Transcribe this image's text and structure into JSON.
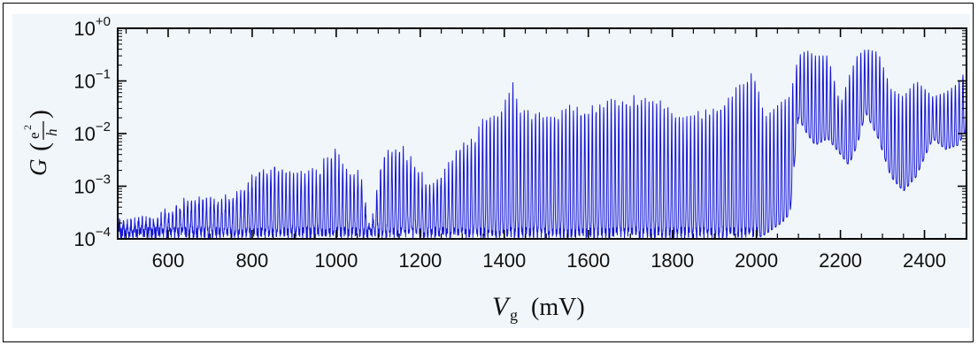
{
  "chart_data": {
    "type": "line",
    "title": "",
    "xlabel": {
      "symbol": "V",
      "subscript": "g",
      "unit": "(mV)"
    },
    "ylabel": {
      "symbol": "G",
      "numerator": "e",
      "exponent": "2",
      "denominator": "h"
    },
    "xlim": [
      480,
      2500
    ],
    "ylim": [
      0.0001,
      1
    ],
    "yscale": "log",
    "x_ticks": [
      600,
      800,
      1000,
      1200,
      1400,
      1600,
      1800,
      2000,
      2200,
      2400
    ],
    "x_tick_labels": [
      "600",
      "800",
      "1000",
      "1200",
      "1400",
      "1600",
      "1800",
      "2000",
      "2200",
      "2400"
    ],
    "y_ticks": [
      {
        "value": 1,
        "base": "10",
        "exp": "+0"
      },
      {
        "value": 0.1,
        "base": "10",
        "exp": "−1"
      },
      {
        "value": 0.01,
        "base": "10",
        "exp": "−2"
      },
      {
        "value": 0.001,
        "base": "10",
        "exp": "−3"
      },
      {
        "value": 0.0001,
        "base": "10",
        "exp": "−4"
      }
    ],
    "grid": false,
    "series": [
      {
        "color": "#1515d8",
        "envelope": {
          "x": [
            480,
            560,
            620,
            660,
            720,
            780,
            820,
            850,
            880,
            920,
            960,
            990,
            1000,
            1020,
            1060,
            1080,
            1110,
            1130,
            1160,
            1190,
            1220,
            1260,
            1290,
            1310,
            1330,
            1360,
            1380,
            1420,
            1440,
            1480,
            1520,
            1560,
            1600,
            1640,
            1700,
            1740,
            1780,
            1820,
            1860,
            1900,
            1940,
            1980,
            2000,
            2020,
            2060,
            2080,
            2100,
            2120,
            2140,
            2170,
            2200,
            2220,
            2240,
            2260,
            2290,
            2320,
            2350,
            2380,
            2420,
            2450,
            2480,
            2500
          ],
          "peak": [
            0.00015,
            0.00018,
            0.0003,
            0.00045,
            0.0004,
            0.0007,
            0.0015,
            0.0018,
            0.0013,
            0.0012,
            0.0015,
            0.0035,
            0.0035,
            0.0015,
            0.0012,
            0.0001,
            0.0025,
            0.0035,
            0.0038,
            0.0017,
            0.0007,
            0.0015,
            0.0035,
            0.0055,
            0.006,
            0.018,
            0.015,
            0.06,
            0.017,
            0.018,
            0.017,
            0.022,
            0.02,
            0.03,
            0.032,
            0.032,
            0.025,
            0.012,
            0.017,
            0.02,
            0.04,
            0.09,
            0.095,
            0.02,
            0.04,
            0.05,
            0.3,
            0.38,
            0.3,
            0.3,
            0.035,
            0.12,
            0.3,
            0.4,
            0.35,
            0.07,
            0.05,
            0.1,
            0.05,
            0.06,
            0.09,
            0.17
          ],
          "valley": [
            0.0001,
            0.0001,
            0.0001,
            0.0001,
            0.0001,
            0.0001,
            0.0001,
            0.0001,
            0.0001,
            0.0001,
            0.0001,
            0.0001,
            0.0001,
            0.0001,
            0.0001,
            0.0001,
            0.0001,
            0.0001,
            0.0001,
            0.0001,
            0.0001,
            0.0001,
            0.0001,
            0.0001,
            0.0001,
            0.0001,
            0.0001,
            0.0001,
            0.0001,
            0.0001,
            0.0001,
            0.0001,
            0.0001,
            0.0001,
            0.0001,
            0.0001,
            0.0001,
            0.0001,
            0.0001,
            0.0001,
            0.0001,
            0.0001,
            0.0001,
            0.00012,
            0.0002,
            0.0003,
            0.02,
            0.01,
            0.006,
            0.008,
            0.004,
            0.0025,
            0.006,
            0.025,
            0.008,
            0.0015,
            0.0008,
            0.0015,
            0.008,
            0.005,
            0.006,
            0.012
          ],
          "period": 9
        }
      }
    ]
  }
}
